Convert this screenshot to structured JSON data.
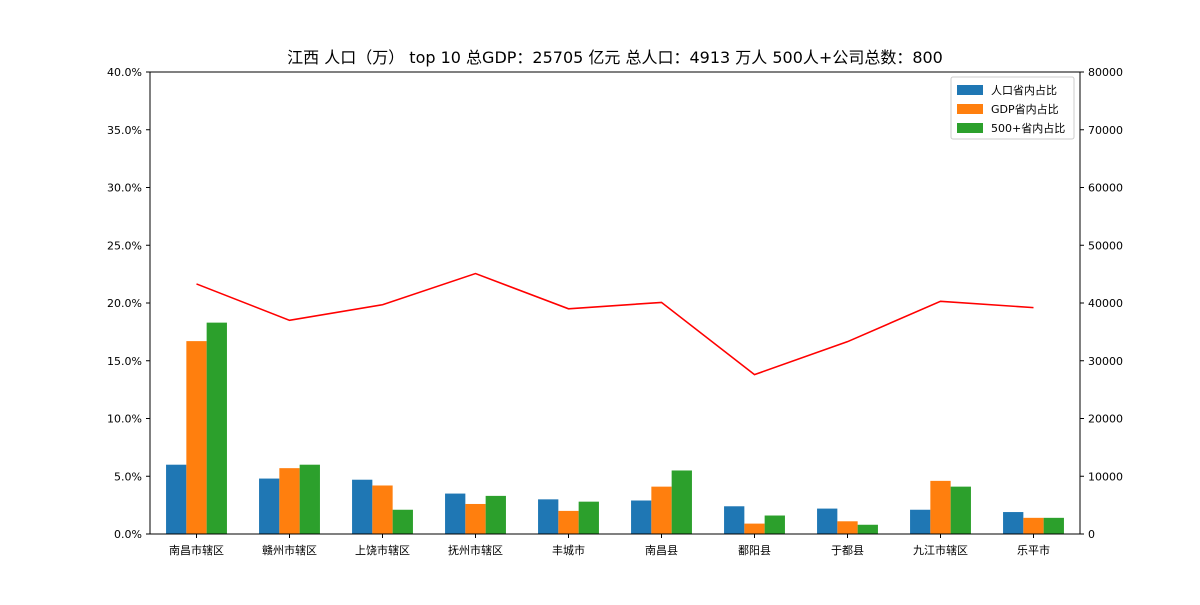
{
  "chart_data": {
    "type": "bar",
    "title": "江西 人口（万） top 10     总GDP：25705 亿元       总人口：4913 万人       500人+公司总数：800",
    "categories": [
      "南昌市辖区",
      "赣州市辖区",
      "上饶市辖区",
      "抚州市辖区",
      "丰城市",
      "南昌县",
      "鄱阳县",
      "于都县",
      "九江市辖区",
      "乐平市"
    ],
    "series": [
      {
        "name": "人口省内占比",
        "axis": "left",
        "unit": "percent",
        "color": "#1f77b4",
        "values": [
          6.0,
          4.8,
          4.7,
          3.5,
          3.0,
          2.9,
          2.4,
          2.2,
          2.1,
          1.9
        ]
      },
      {
        "name": "GDP省内占比",
        "axis": "left",
        "unit": "percent",
        "color": "#ff7f0e",
        "values": [
          16.7,
          5.7,
          4.2,
          2.6,
          2.0,
          4.1,
          0.9,
          1.1,
          4.6,
          1.4
        ]
      },
      {
        "name": "500+省内占比",
        "axis": "left",
        "unit": "percent",
        "color": "#2ca02c",
        "values": [
          18.3,
          6.0,
          2.1,
          3.3,
          2.8,
          5.5,
          1.6,
          0.8,
          4.1,
          1.4
        ]
      },
      {
        "name": "",
        "type": "line",
        "axis": "right",
        "color": "#ff0000",
        "values": [
          43300,
          37000,
          39700,
          45100,
          39000,
          40100,
          27600,
          33300,
          40300,
          39200
        ]
      }
    ],
    "yleft": {
      "ylim": [
        0,
        40
      ],
      "ticks": [
        0,
        5,
        10,
        15,
        20,
        25,
        30,
        35,
        40
      ],
      "tick_labels": [
        "0.0%",
        "5.0%",
        "10.0%",
        "15.0%",
        "20.0%",
        "25.0%",
        "30.0%",
        "35.0%",
        "40.0%"
      ]
    },
    "yright": {
      "ylim": [
        0,
        80000
      ],
      "ticks": [
        0,
        10000,
        20000,
        30000,
        40000,
        50000,
        60000,
        70000,
        80000
      ],
      "tick_labels": [
        "0",
        "10000",
        "20000",
        "30000",
        "40000",
        "50000",
        "60000",
        "70000",
        "80000"
      ]
    },
    "xlabel": "",
    "ylabel": "",
    "grid": false,
    "legend_position": "top-right"
  }
}
